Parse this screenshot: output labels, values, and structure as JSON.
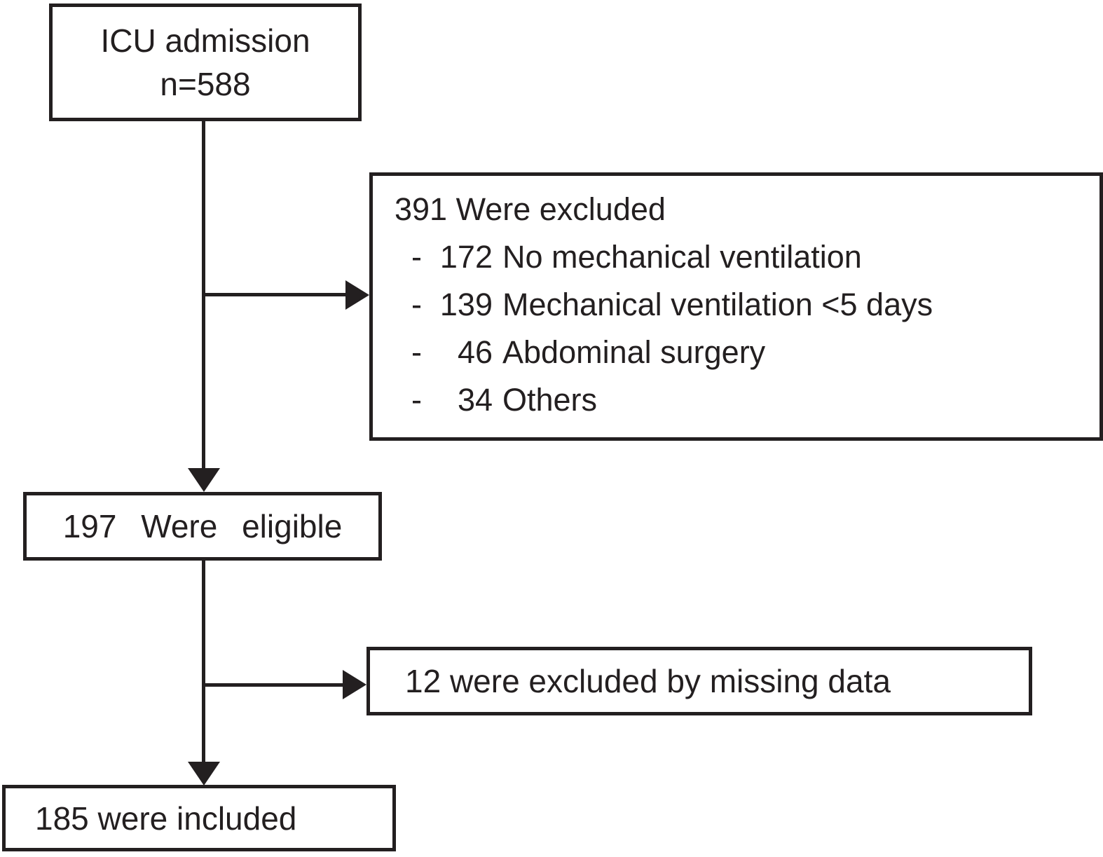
{
  "figure": {
    "ink_color": "#231f20",
    "background_color": "#ffffff",
    "boxes": {
      "icu": {
        "line1": "ICU admission",
        "line2": "n=588"
      },
      "excluded": {
        "header": "391 Were excluded",
        "items": [
          {
            "dash": "-",
            "number": "172",
            "label": "No mechanical ventilation"
          },
          {
            "dash": "-",
            "number": "139",
            "label": "Mechanical ventilation <5 days"
          },
          {
            "dash": "-",
            "number": "46",
            "label": "Abdominal surgery"
          },
          {
            "dash": "-",
            "number": "34",
            "label": "Others"
          }
        ]
      },
      "eligible": {
        "label": "197 Were eligible"
      },
      "missing_data": {
        "label": "12 were excluded by missing data"
      },
      "included": {
        "label": "185 were included"
      }
    }
  }
}
